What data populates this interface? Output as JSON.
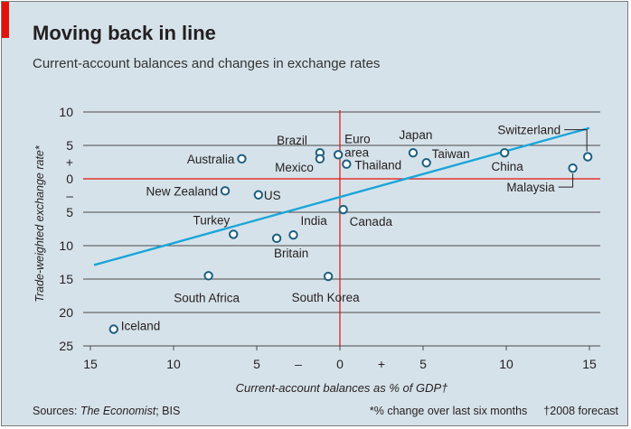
{
  "header": {
    "title": "Moving back in line",
    "subtitle": "Current-account balances and changes in exchange rates"
  },
  "footer": {
    "sources_label": "Sources: ",
    "sources_italic": "The Economist",
    "sources_rest": "; BIS",
    "note_pct": "*% change over last six months",
    "note_forecast": "†2008 forecast"
  },
  "colors": {
    "background": "#d6e2ea",
    "accent": "#e3120b",
    "trend_line": "#1aa5d9",
    "point_stroke": "#1b5f7e",
    "zero_line": "#e3120b",
    "grid": "#4a4a4a"
  },
  "chart_data": {
    "type": "scatter",
    "xlabel": "Current-account balances as % of GDP†",
    "ylabel": "Trade-weighted exchange rate*",
    "xlim": [
      -15,
      15
    ],
    "ylim": [
      -25,
      10
    ],
    "x_ticks": [
      {
        "value": -15,
        "label": "15"
      },
      {
        "value": -10,
        "label": "10"
      },
      {
        "value": -5,
        "label": "5"
      },
      {
        "value": 0,
        "label": "0"
      },
      {
        "value": 5,
        "label": "5"
      },
      {
        "value": 10,
        "label": "10"
      },
      {
        "value": 15,
        "label": "15"
      }
    ],
    "x_signs": [
      {
        "value": -2.5,
        "label": "–"
      },
      {
        "value": 2.5,
        "label": "+"
      }
    ],
    "y_ticks": [
      {
        "value": 10,
        "label": "10"
      },
      {
        "value": 5,
        "label": "5"
      },
      {
        "value": 0,
        "label": "0"
      },
      {
        "value": -5,
        "label": "5"
      },
      {
        "value": -10,
        "label": "10"
      },
      {
        "value": -15,
        "label": "15"
      },
      {
        "value": -20,
        "label": "20"
      },
      {
        "value": -25,
        "label": "25"
      }
    ],
    "y_signs": [
      {
        "value": 2.5,
        "label": "+"
      },
      {
        "value": -2.5,
        "label": "–"
      }
    ],
    "gridlines": [
      10,
      5,
      0,
      -5,
      -10,
      -15,
      -20,
      -25
    ],
    "trend_line": {
      "x": [
        -15,
        15
      ],
      "y": [
        -12.9,
        7.6
      ]
    },
    "points": [
      {
        "name": "Iceland",
        "x": -13.6,
        "y": -22.5
      },
      {
        "name": "South Africa",
        "x": -7.9,
        "y": -14.5
      },
      {
        "name": "South Korea",
        "x": -0.7,
        "y": -14.6
      },
      {
        "name": "Turkey",
        "x": -6.4,
        "y": -8.3
      },
      {
        "name": "Britain",
        "x": -3.8,
        "y": -8.9
      },
      {
        "name": "India",
        "x": -2.8,
        "y": -8.4
      },
      {
        "name": "New Zealand",
        "x": -6.9,
        "y": -1.8
      },
      {
        "name": "US",
        "x": -4.9,
        "y": -2.4
      },
      {
        "name": "Australia",
        "x": -5.9,
        "y": 3.0
      },
      {
        "name": "Brazil",
        "x": -1.2,
        "y": 3.9
      },
      {
        "name": "Mexico",
        "x": -1.2,
        "y": 3.0
      },
      {
        "name": "Euro area",
        "x": -0.1,
        "y": 3.6
      },
      {
        "name": "Thailand",
        "x": 0.4,
        "y": 2.2
      },
      {
        "name": "Canada",
        "x": 0.2,
        "y": -4.6
      },
      {
        "name": "Japan",
        "x": 4.4,
        "y": 3.9
      },
      {
        "name": "Taiwan",
        "x": 5.2,
        "y": 2.4
      },
      {
        "name": "China",
        "x": 9.9,
        "y": 3.9
      },
      {
        "name": "Switzerland",
        "x": 14.9,
        "y": 3.3
      },
      {
        "name": "Malaysia",
        "x": 14.0,
        "y": 1.6
      }
    ]
  }
}
